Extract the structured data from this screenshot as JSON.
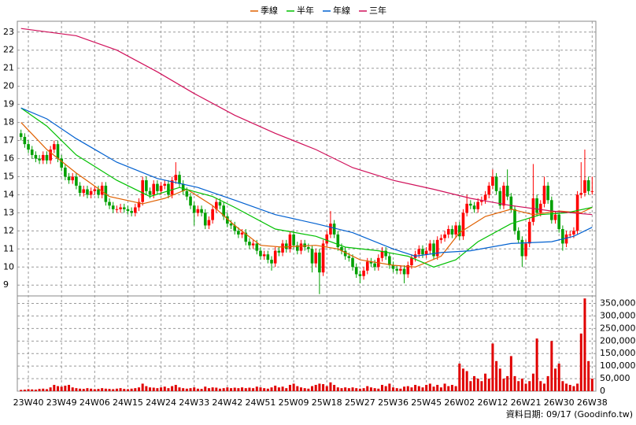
{
  "chart_data": {
    "type": "candlestick",
    "up_color": "#ff0000",
    "down_color": "#00a000",
    "grid": true,
    "xlim": [
      -1,
      156
    ],
    "xticks": [
      {
        "value": 2,
        "label": "23W40"
      },
      {
        "value": 11,
        "label": "23W49"
      },
      {
        "value": 20,
        "label": "24W06"
      },
      {
        "value": 29,
        "label": "24W15"
      },
      {
        "value": 38,
        "label": "24W24"
      },
      {
        "value": 47,
        "label": "24W33"
      },
      {
        "value": 56,
        "label": "24W42"
      },
      {
        "value": 65,
        "label": "24W51"
      },
      {
        "value": 74,
        "label": "25W09"
      },
      {
        "value": 83,
        "label": "25W18"
      },
      {
        "value": 92,
        "label": "25W27"
      },
      {
        "value": 101,
        "label": "25W36"
      },
      {
        "value": 110,
        "label": "25W45"
      },
      {
        "value": 119,
        "label": "26W02"
      },
      {
        "value": 128,
        "label": "26W12"
      },
      {
        "value": 137,
        "label": "26W21"
      },
      {
        "value": 146,
        "label": "26W30"
      },
      {
        "value": 155,
        "label": "26W38"
      }
    ],
    "ylim": [
      8.4,
      23.6
    ],
    "yticks": [
      9,
      10,
      11,
      12,
      13,
      14,
      15,
      16,
      17,
      18,
      19,
      20,
      21,
      22,
      23
    ],
    "open": [
      17.4,
      17.2,
      16.8,
      16.5,
      16.2,
      16.0,
      15.9,
      16.2,
      15.9,
      16.5,
      16.8,
      16.0,
      15.5,
      15.0,
      14.8,
      15.0,
      14.5,
      14.1,
      14.3,
      14.0,
      14.2,
      14.3,
      14.0,
      14.5,
      13.6,
      13.4,
      13.2,
      13.2,
      13.3,
      13.2,
      13.1,
      13.0,
      13.3,
      13.6,
      14.8,
      14.2,
      14.0,
      14.6,
      14.2,
      14.5,
      14.6,
      14.0,
      14.8,
      15.1,
      14.6,
      14.2,
      13.9,
      13.4,
      13.0,
      13.2,
      13.0,
      12.3,
      12.6,
      13.2,
      13.6,
      13.4,
      12.8,
      12.4,
      12.3,
      12.0,
      11.8,
      11.9,
      11.4,
      11.2,
      11.3,
      10.9,
      10.6,
      10.7,
      10.4,
      10.2,
      10.9,
      10.8,
      11.3,
      11.0,
      11.8,
      11.2,
      10.9,
      11.3,
      11.1,
      11.0,
      10.2,
      10.8,
      9.7,
      11.3,
      11.8,
      12.4,
      11.8,
      11.1,
      10.9,
      10.6,
      10.5,
      10.0,
      9.6,
      9.5,
      9.8,
      10.3,
      10.2,
      10.0,
      10.5,
      10.9,
      10.6,
      10.1,
      9.9,
      9.8,
      9.9,
      9.6,
      10.1,
      10.5,
      10.7,
      11.0,
      10.7,
      10.9,
      11.3,
      10.6,
      11.5,
      11.6,
      11.8,
      12.1,
      11.8,
      12.3,
      11.7,
      13.0,
      13.5,
      13.4,
      13.2,
      13.6,
      13.7,
      14.0,
      14.5,
      15.0,
      14.2,
      13.4,
      14.5,
      13.9,
      13.2,
      12.0,
      11.5,
      10.6,
      11.3,
      12.5,
      13.8,
      13.0,
      13.5,
      14.5,
      13.7,
      12.6,
      12.9,
      12.1,
      11.3,
      11.8,
      11.8,
      12.0,
      14.0,
      14.1,
      14.8,
      14.2
    ],
    "high": [
      17.6,
      17.4,
      17.0,
      16.7,
      16.4,
      16.2,
      16.4,
      16.4,
      16.7,
      17.0,
      17.0,
      16.2,
      15.7,
      15.2,
      15.2,
      15.2,
      14.7,
      14.5,
      14.5,
      14.4,
      14.5,
      14.5,
      14.7,
      14.7,
      13.8,
      13.6,
      13.4,
      13.5,
      13.5,
      13.4,
      13.3,
      13.5,
      13.8,
      15.0,
      15.0,
      14.4,
      14.8,
      14.8,
      14.7,
      14.8,
      14.8,
      15.0,
      15.8,
      15.3,
      14.8,
      14.4,
      14.1,
      13.6,
      13.4,
      13.4,
      13.2,
      12.8,
      13.4,
      13.8,
      13.8,
      13.6,
      13.0,
      12.6,
      12.5,
      12.2,
      12.1,
      12.1,
      11.6,
      11.5,
      11.5,
      11.1,
      10.9,
      10.9,
      10.6,
      11.1,
      11.1,
      11.5,
      11.5,
      12.0,
      12.0,
      11.4,
      11.5,
      11.5,
      11.3,
      11.2,
      11.0,
      11.0,
      11.5,
      12.0,
      13.1,
      12.6,
      12.0,
      11.3,
      11.1,
      10.8,
      10.7,
      10.2,
      9.8,
      10.0,
      10.5,
      10.5,
      10.4,
      10.7,
      11.1,
      11.1,
      10.8,
      10.3,
      10.1,
      10.1,
      10.1,
      10.3,
      10.7,
      10.9,
      11.2,
      11.2,
      11.1,
      11.5,
      11.5,
      11.7,
      11.8,
      12.0,
      12.3,
      12.3,
      12.5,
      12.5,
      13.2,
      14.0,
      13.7,
      13.6,
      13.8,
      13.9,
      14.2,
      14.7,
      15.4,
      15.2,
      14.4,
      14.7,
      15.4,
      14.1,
      13.4,
      12.2,
      11.7,
      11.5,
      12.7,
      15.7,
      14.0,
      13.7,
      15.0,
      14.7,
      13.9,
      13.1,
      13.1,
      12.3,
      12.0,
      12.0,
      12.2,
      14.2,
      15.8,
      16.5,
      15.0,
      15.0
    ],
    "low": [
      17.0,
      16.6,
      16.3,
      16.0,
      15.8,
      15.7,
      15.7,
      15.7,
      15.7,
      16.3,
      15.8,
      15.3,
      14.8,
      14.6,
      14.6,
      14.3,
      13.9,
      13.9,
      13.8,
      13.8,
      14.0,
      13.8,
      13.8,
      13.4,
      13.2,
      13.0,
      13.0,
      13.0,
      13.0,
      12.9,
      12.8,
      12.8,
      13.1,
      13.4,
      14.0,
      13.8,
      13.8,
      14.0,
      14.0,
      14.3,
      13.8,
      13.8,
      14.6,
      14.4,
      14.0,
      13.7,
      13.2,
      12.3,
      12.8,
      12.8,
      12.1,
      12.1,
      12.4,
      13.0,
      13.2,
      12.6,
      12.2,
      12.1,
      11.8,
      11.6,
      11.6,
      11.2,
      11.0,
      11.0,
      10.7,
      10.4,
      10.4,
      10.2,
      9.8,
      10.0,
      10.6,
      10.6,
      10.8,
      10.8,
      11.0,
      10.7,
      10.7,
      10.9,
      10.8,
      9.7,
      10.0,
      8.5,
      9.5,
      11.1,
      11.6,
      11.6,
      10.9,
      10.7,
      10.4,
      10.3,
      9.8,
      9.4,
      9.1,
      9.3,
      9.6,
      10.0,
      9.8,
      9.8,
      10.3,
      10.4,
      9.9,
      9.7,
      9.6,
      9.6,
      9.1,
      9.4,
      9.9,
      10.3,
      10.5,
      10.5,
      10.5,
      10.7,
      10.4,
      10.4,
      11.3,
      11.4,
      11.6,
      11.6,
      11.6,
      11.5,
      11.5,
      12.8,
      13.2,
      13.0,
      13.0,
      13.4,
      13.5,
      13.8,
      14.3,
      14.0,
      13.2,
      13.2,
      13.7,
      13.0,
      11.8,
      11.3,
      10.0,
      10.4,
      11.1,
      12.3,
      12.8,
      12.8,
      13.3,
      13.5,
      12.4,
      12.4,
      11.9,
      10.9,
      11.1,
      11.6,
      11.6,
      11.8,
      13.8,
      13.9,
      14.0,
      14.0
    ],
    "close": [
      17.2,
      16.8,
      16.5,
      16.2,
      16.0,
      15.9,
      16.2,
      15.9,
      16.5,
      16.8,
      16.0,
      15.5,
      15.0,
      14.8,
      15.0,
      14.5,
      14.1,
      14.3,
      14.0,
      14.2,
      14.3,
      14.0,
      14.5,
      13.6,
      13.4,
      13.2,
      13.2,
      13.3,
      13.2,
      13.1,
      13.0,
      13.3,
      13.6,
      14.8,
      14.2,
      14.0,
      14.6,
      14.2,
      14.5,
      14.6,
      14.0,
      14.8,
      15.1,
      14.6,
      14.2,
      13.9,
      13.4,
      13.0,
      13.2,
      13.0,
      12.3,
      12.6,
      13.2,
      13.6,
      13.4,
      12.8,
      12.4,
      12.3,
      12.0,
      11.8,
      11.9,
      11.4,
      11.2,
      11.3,
      10.9,
      10.6,
      10.7,
      10.4,
      10.2,
      10.9,
      10.8,
      11.3,
      11.0,
      11.8,
      11.2,
      10.9,
      11.3,
      11.1,
      11.0,
      10.2,
      10.8,
      9.7,
      11.3,
      11.8,
      12.4,
      11.8,
      11.1,
      10.9,
      10.6,
      10.5,
      10.0,
      9.6,
      9.5,
      9.8,
      10.3,
      10.2,
      10.0,
      10.5,
      10.9,
      10.6,
      10.1,
      9.9,
      9.8,
      9.9,
      9.6,
      10.1,
      10.5,
      10.7,
      11.0,
      10.7,
      10.9,
      11.3,
      10.6,
      11.5,
      11.6,
      11.8,
      12.1,
      11.8,
      12.3,
      11.7,
      13.0,
      13.5,
      13.4,
      13.2,
      13.6,
      13.7,
      14.0,
      14.5,
      15.0,
      14.2,
      13.4,
      14.5,
      13.9,
      13.2,
      12.0,
      11.5,
      10.6,
      11.3,
      12.5,
      13.8,
      13.0,
      13.5,
      14.5,
      13.7,
      12.6,
      12.9,
      12.1,
      11.3,
      11.8,
      11.8,
      12.0,
      14.0,
      14.1,
      14.8,
      14.2,
      14.2
    ],
    "series": [
      {
        "name": "季線",
        "color": "#e06000",
        "x": [
          0,
          7,
          15,
          24,
          33,
          39,
          45,
          52,
          58,
          65,
          71,
          80,
          86,
          92,
          101,
          107,
          114,
          119,
          126,
          133,
          139,
          146,
          152,
          155
        ],
        "values": [
          18.0,
          16.5,
          15.2,
          13.9,
          13.5,
          13.8,
          14.3,
          13.4,
          12.3,
          11.2,
          11.1,
          11.2,
          11.0,
          10.4,
          10.1,
          10.0,
          10.6,
          11.9,
          12.8,
          13.2,
          12.9,
          13.1,
          13.0,
          13.3
        ]
      },
      {
        "name": "半年",
        "color": "#00c000",
        "x": [
          0,
          7,
          15,
          26,
          35,
          43,
          52,
          58,
          69,
          80,
          88,
          97,
          105,
          112,
          118,
          124,
          133,
          141,
          148,
          155
        ],
        "values": [
          18.8,
          17.8,
          16.2,
          14.8,
          13.9,
          14.4,
          13.9,
          13.3,
          12.1,
          11.7,
          11.1,
          10.9,
          10.6,
          10.0,
          10.4,
          11.4,
          12.4,
          12.9,
          13.0,
          13.3
        ]
      },
      {
        "name": "年線",
        "color": "#0060d0",
        "x": [
          0,
          7,
          15,
          26,
          37,
          48,
          58,
          69,
          80,
          90,
          101,
          107,
          114,
          122,
          133,
          144,
          150,
          155
        ],
        "values": [
          18.8,
          18.2,
          17.1,
          15.8,
          14.9,
          14.4,
          13.7,
          12.9,
          12.4,
          11.9,
          11.0,
          10.6,
          10.8,
          10.9,
          11.3,
          11.4,
          11.7,
          12.2
        ]
      },
      {
        "name": "三年",
        "color": "#d0105a",
        "x": [
          0,
          15,
          26,
          37,
          47,
          58,
          69,
          80,
          90,
          101,
          112,
          122,
          133,
          144,
          155
        ],
        "values": [
          23.2,
          22.8,
          22.0,
          20.8,
          19.6,
          18.4,
          17.4,
          16.5,
          15.5,
          14.8,
          14.3,
          13.8,
          13.4,
          13.1,
          12.9
        ]
      }
    ],
    "volume": {
      "color": "#e00000",
      "ylim": [
        0,
        380000
      ],
      "yticks": [
        {
          "value": 0,
          "label": "0"
        },
        {
          "value": 50000,
          "label": "50,000"
        },
        {
          "value": 100000,
          "label": "100,000"
        },
        {
          "value": 150000,
          "label": "150,000"
        },
        {
          "value": 200000,
          "label": "200,000"
        },
        {
          "value": 250000,
          "label": "250,000"
        },
        {
          "value": 300000,
          "label": "300,000"
        },
        {
          "value": 350000,
          "label": "350,000"
        }
      ],
      "values": [
        5000,
        6000,
        8000,
        7000,
        6000,
        9000,
        10000,
        8000,
        15000,
        25000,
        20000,
        18000,
        22000,
        25000,
        15000,
        12000,
        10000,
        9000,
        12000,
        10000,
        8000,
        9000,
        12000,
        10000,
        9000,
        8000,
        10000,
        12000,
        9000,
        8000,
        10000,
        12000,
        15000,
        30000,
        20000,
        15000,
        14000,
        12000,
        15000,
        18000,
        12000,
        20000,
        25000,
        15000,
        12000,
        10000,
        12000,
        15000,
        10000,
        9000,
        18000,
        12000,
        15000,
        14000,
        10000,
        12000,
        15000,
        12000,
        14000,
        12000,
        15000,
        12000,
        14000,
        12000,
        18000,
        15000,
        12000,
        10000,
        15000,
        22000,
        15000,
        18000,
        12000,
        25000,
        30000,
        20000,
        15000,
        12000,
        10000,
        20000,
        25000,
        30000,
        28000,
        20000,
        35000,
        25000,
        15000,
        12000,
        15000,
        12000,
        15000,
        12000,
        10000,
        12000,
        20000,
        15000,
        12000,
        10000,
        25000,
        20000,
        30000,
        15000,
        12000,
        10000,
        18000,
        20000,
        15000,
        25000,
        20000,
        15000,
        25000,
        30000,
        18000,
        25000,
        15000,
        30000,
        20000,
        25000,
        20000,
        110000,
        90000,
        80000,
        40000,
        60000,
        50000,
        40000,
        70000,
        50000,
        190000,
        120000,
        90000,
        50000,
        60000,
        140000,
        60000,
        40000,
        50000,
        30000,
        40000,
        70000,
        210000,
        40000,
        30000,
        60000,
        200000,
        90000,
        110000,
        40000,
        30000,
        25000,
        20000,
        30000,
        230000,
        370000,
        120000,
        50000
      ]
    },
    "note": "資料日期: 09/17 (Goodinfo.tw)"
  }
}
